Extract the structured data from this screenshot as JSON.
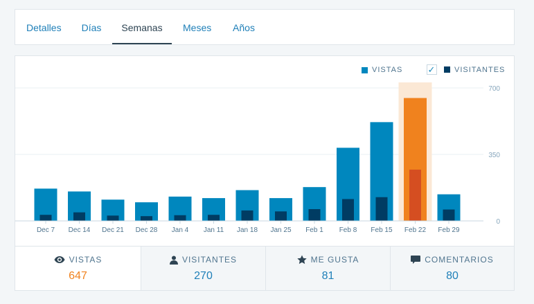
{
  "tabs": [
    {
      "label": "Detalles",
      "active": false
    },
    {
      "label": "Días",
      "active": false
    },
    {
      "label": "Semanas",
      "active": true
    },
    {
      "label": "Meses",
      "active": false
    },
    {
      "label": "Años",
      "active": false
    }
  ],
  "legend": {
    "views_label": "VISTAS",
    "visitors_label": "VISITANTES",
    "visitors_checked": true
  },
  "colors": {
    "views": "#0087be",
    "visitors": "#003c63",
    "highlight_views": "#f0821e",
    "highlight_visitors": "#d54e21",
    "highlight_bg": "#fbe8d5"
  },
  "chart_data": {
    "type": "bar",
    "categories": [
      "Dec 7",
      "Dec 14",
      "Dec 21",
      "Dec 28",
      "Jan 4",
      "Jan 11",
      "Jan 18",
      "Jan 25",
      "Feb 1",
      "Feb 8",
      "Feb 15",
      "Feb 22",
      "Feb 29"
    ],
    "series": [
      {
        "name": "VISTAS",
        "values": [
          170,
          155,
          112,
          98,
          128,
          120,
          162,
          120,
          178,
          385,
          520,
          647,
          140
        ]
      },
      {
        "name": "VISITANTES",
        "values": [
          32,
          45,
          28,
          25,
          30,
          32,
          55,
          50,
          62,
          115,
          125,
          270,
          60
        ]
      }
    ],
    "y_ticks": [
      "700",
      "350",
      "0"
    ],
    "ylim": [
      0,
      700
    ],
    "highlighted_index": 11,
    "grid": true
  },
  "stats": [
    {
      "label": "VISTAS",
      "value": "647",
      "icon": "eye-icon",
      "active": true
    },
    {
      "label": "VISITANTES",
      "value": "270",
      "icon": "person-icon",
      "active": false
    },
    {
      "label": "ME GUSTA",
      "value": "81",
      "icon": "star-icon",
      "active": false
    },
    {
      "label": "COMENTARIOS",
      "value": "80",
      "icon": "comment-icon",
      "active": false
    }
  ]
}
